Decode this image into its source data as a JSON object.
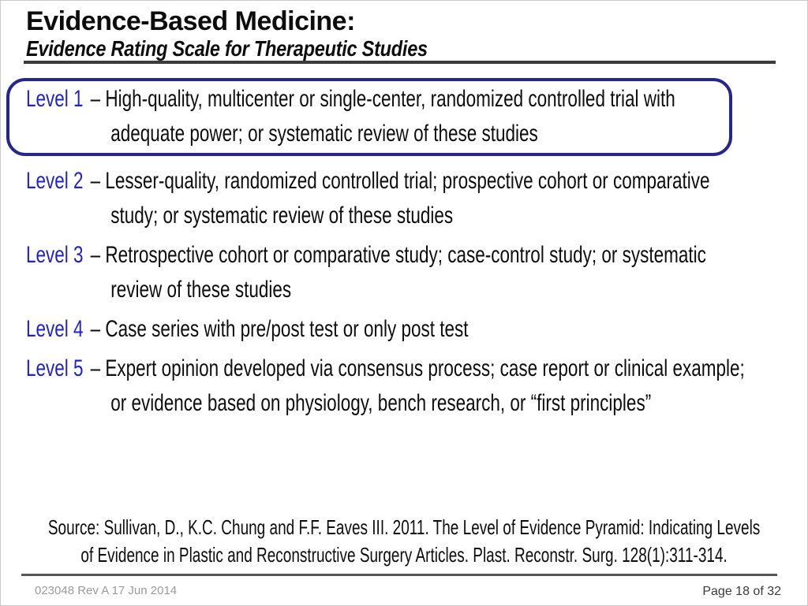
{
  "slide": {
    "title": "Evidence-Based Medicine:",
    "subtitle": "Evidence Rating Scale for Therapeutic Studies",
    "levels": [
      {
        "label": "Level 1",
        "text": "– High-quality, multicenter or single-center, randomized controlled trial with\nadequate power; or systematic review of these studies",
        "highlighted": true
      },
      {
        "label": "Level 2",
        "text": "– Lesser-quality, randomized controlled trial; prospective cohort or comparative\nstudy; or systematic review of these studies",
        "highlighted": false
      },
      {
        "label": "Level 3",
        "text": "– Retrospective cohort or comparative study; case-control study; or systematic\nreview of these studies",
        "highlighted": false
      },
      {
        "label": "Level 4",
        "text": "– Case series with pre/post test or only post test",
        "highlighted": false
      },
      {
        "label": "Level 5",
        "text": "– Expert opinion developed via consensus process; case report or clinical example;\nor evidence based on physiology, bench research, or “first principles”",
        "highlighted": false
      }
    ],
    "source": "Source: Sullivan, D., K.C. Chung and F.F. Eaves III. 2011. The Level of Evidence Pyramid: Indicating Levels\nof Evidence in Plastic and Reconstructive Surgery Articles. Plast. Reconstr. Surg. 128(1):311-314.",
    "footer": {
      "left": "023048 Rev A 17 Jun 2014",
      "right": "Page 18 of 32"
    },
    "colors": {
      "level_label": "#2222cc",
      "highlight_border": "#26268c",
      "rule_top": "#3b3b3b",
      "rule_bottom": "#565656",
      "footer_left_text": "#9a9a9a",
      "footer_right_text": "#3a3a3a"
    }
  }
}
